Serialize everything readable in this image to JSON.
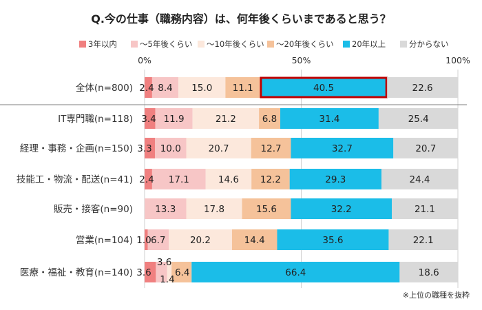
{
  "chart_data": {
    "type": "bar",
    "stacked": "horizontal-100-percent",
    "title": "Q.今の仕事（職務内容）は、何年後くらいまであると思う？",
    "axis_ticks": [
      "0%",
      "50%",
      "100%"
    ],
    "xlim": [
      0,
      100
    ],
    "grid": true,
    "legend_position": "top",
    "footnote": "※上位の職種を抜粋",
    "highlight": {
      "category": "全体(n=800)",
      "series": "20年以上",
      "color": "#c00000"
    },
    "colors": [
      "#f08080",
      "#f7c6c6",
      "#fce8dc",
      "#f5c29a",
      "#1bbde8",
      "#d9d9d9"
    ],
    "series": [
      {
        "name": "3年以内",
        "values": [
          2.4,
          3.4,
          3.3,
          2.4,
          0,
          1.0,
          3.6
        ],
        "labels": [
          "2.4",
          "3.4",
          "3.3",
          "2.4",
          "",
          "1.0",
          "3.6"
        ]
      },
      {
        "name": "～5年後くらい",
        "values": [
          8.4,
          11.9,
          10.0,
          17.1,
          13.3,
          6.7,
          3.6
        ],
        "labels": [
          "8.4",
          "11.9",
          "10.0",
          "17.1",
          "13.3",
          "6.7",
          "3.6"
        ]
      },
      {
        "name": "～10年後くらい",
        "values": [
          15.0,
          21.2,
          20.7,
          14.6,
          17.8,
          20.2,
          1.4
        ],
        "labels": [
          "15.0",
          "21.2",
          "20.7",
          "14.6",
          "17.8",
          "20.2",
          "1.4"
        ]
      },
      {
        "name": "～20年後くらい",
        "values": [
          11.1,
          6.8,
          12.7,
          12.2,
          15.6,
          14.4,
          6.4
        ],
        "labels": [
          "11.1",
          "6.8",
          "12.7",
          "12.2",
          "15.6",
          "14.4",
          "6.4"
        ]
      },
      {
        "name": "20年以上",
        "values": [
          40.5,
          31.4,
          32.7,
          29.3,
          32.2,
          35.6,
          66.4
        ],
        "labels": [
          "40.5",
          "31.4",
          "32.7",
          "29.3",
          "32.2",
          "35.6",
          "66.4"
        ]
      },
      {
        "name": "分からない",
        "values": [
          22.6,
          25.4,
          20.7,
          24.4,
          21.1,
          22.1,
          18.6
        ],
        "labels": [
          "22.6",
          "25.4",
          "20.7",
          "24.4",
          "21.1",
          "22.1",
          "18.6"
        ]
      }
    ],
    "categories": [
      "全体(n=800)",
      "IT専門職(n=118)",
      "経理・事務・企画(n=150)",
      "技能工・物流・配送(n=41)",
      "販売・接客(n=90)",
      "営業(n=104)",
      "医療・福祉・教育(n=140)"
    ]
  }
}
